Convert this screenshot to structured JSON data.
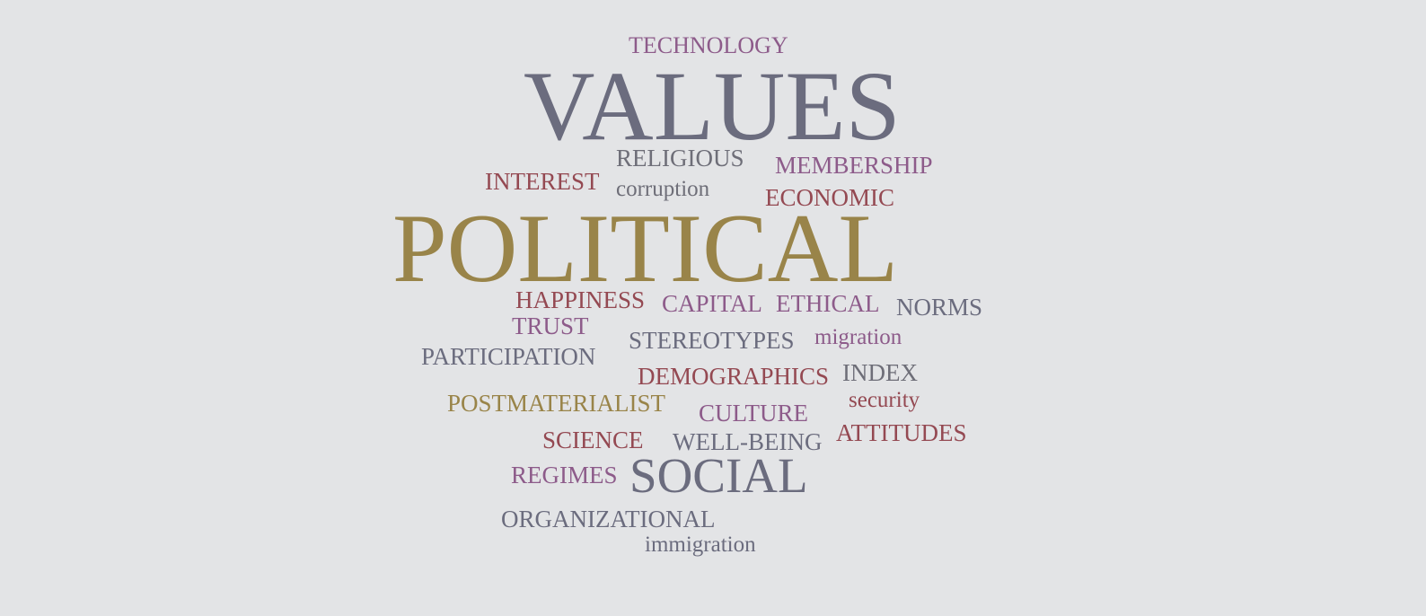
{
  "colors": {
    "background": "#e3e4e6",
    "slate": "#6b6c7e",
    "olive": "#998449",
    "plum": "#8d5b8a",
    "crimson": "#944952",
    "gray": "#6e6e78"
  },
  "words": [
    {
      "id": "technology",
      "text": "TECHNOLOGY",
      "color": "#8d5b8a"
    },
    {
      "id": "values",
      "text": "VALUES",
      "color": "#6b6c7e"
    },
    {
      "id": "religious",
      "text": "RELIGIOUS",
      "color": "#6e6e78"
    },
    {
      "id": "membership",
      "text": "MEMBERSHIP",
      "color": "#8d5b8a"
    },
    {
      "id": "interest",
      "text": "INTEREST",
      "color": "#944952"
    },
    {
      "id": "corruption",
      "text": "corruption",
      "color": "#6e6e78"
    },
    {
      "id": "economic",
      "text": "ECONOMIC",
      "color": "#944952"
    },
    {
      "id": "political",
      "text": "POLITICAL",
      "color": "#998449"
    },
    {
      "id": "happiness",
      "text": "HAPPINESS",
      "color": "#944952"
    },
    {
      "id": "capital",
      "text": "CAPITAL",
      "color": "#8d5b8a"
    },
    {
      "id": "ethical",
      "text": "ETHICAL",
      "color": "#8d5b8a"
    },
    {
      "id": "norms",
      "text": "NORMS",
      "color": "#6b6c7e"
    },
    {
      "id": "trust",
      "text": "TRUST",
      "color": "#8d5b8a"
    },
    {
      "id": "stereotypes",
      "text": "STEREOTYPES",
      "color": "#6b6c7e"
    },
    {
      "id": "migration",
      "text": "migration",
      "color": "#8d5b8a"
    },
    {
      "id": "participation",
      "text": "PARTICIPATION",
      "color": "#6b6c7e"
    },
    {
      "id": "demographics",
      "text": "DEMOGRAPHICS",
      "color": "#944952"
    },
    {
      "id": "index",
      "text": "INDEX",
      "color": "#6e6e78"
    },
    {
      "id": "postmaterialist",
      "text": "POSTMATERIALIST",
      "color": "#998449"
    },
    {
      "id": "security",
      "text": "security",
      "color": "#944952"
    },
    {
      "id": "culture",
      "text": "CULTURE",
      "color": "#8d5b8a"
    },
    {
      "id": "attitudes",
      "text": "ATTITUDES",
      "color": "#944952"
    },
    {
      "id": "science",
      "text": "SCIENCE",
      "color": "#944952"
    },
    {
      "id": "well-being",
      "text": "WELL-BEING",
      "color": "#6b6c7e"
    },
    {
      "id": "regimes",
      "text": "REGIMES",
      "color": "#8d5b8a"
    },
    {
      "id": "social",
      "text": "SOCIAL",
      "color": "#6b6c7e"
    },
    {
      "id": "organizational",
      "text": "ORGANIZATIONAL",
      "color": "#6b6c7e"
    },
    {
      "id": "immigration",
      "text": "immigration",
      "color": "#6b6c7e"
    }
  ]
}
